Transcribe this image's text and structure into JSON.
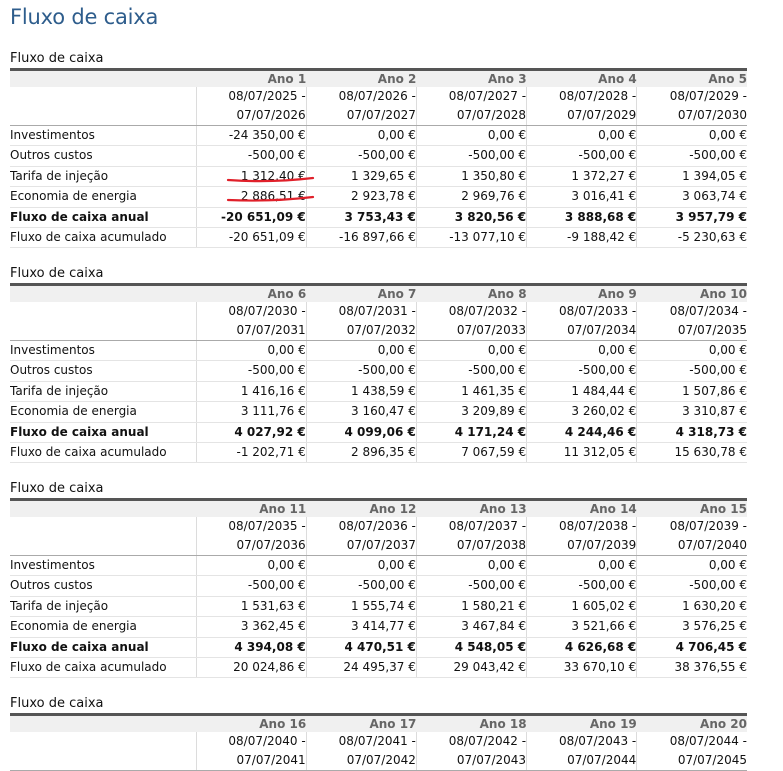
{
  "page_title": "Fluxo de caixa",
  "row_labels": [
    "Investimentos",
    "Outros custos",
    "Tarifa de injeção",
    "Economia de energia",
    "Fluxo de caixa anual",
    "Fluxo de caixa acumulado"
  ],
  "sections": [
    {
      "title": "Fluxo de caixa",
      "years": [
        "Ano 1",
        "Ano 2",
        "Ano 3",
        "Ano 4",
        "Ano 5"
      ],
      "date_from": [
        "08/07/2025 -",
        "08/07/2026 -",
        "08/07/2027 -",
        "08/07/2028 -",
        "08/07/2029 -"
      ],
      "date_to": [
        "07/07/2026",
        "07/07/2027",
        "07/07/2028",
        "07/07/2029",
        "07/07/2030"
      ],
      "rows": [
        [
          "-24 350,00 €",
          "0,00 €",
          "0,00 €",
          "0,00 €",
          "0,00 €"
        ],
        [
          "-500,00 €",
          "-500,00 €",
          "-500,00 €",
          "-500,00 €",
          "-500,00 €"
        ],
        [
          "1 312,40 €",
          "1 329,65 €",
          "1 350,80 €",
          "1 372,27 €",
          "1 394,05 €"
        ],
        [
          "2 886,51 €",
          "2 923,78 €",
          "2 969,76 €",
          "3 016,41 €",
          "3 063,74 €"
        ],
        [
          "-20 651,09 €",
          "3 753,43 €",
          "3 820,56 €",
          "3 888,68 €",
          "3 957,79 €"
        ],
        [
          "-20 651,09 €",
          "-16 897,66 €",
          "-13 077,10 €",
          "-9 188,42 €",
          "-5 230,63 €"
        ]
      ]
    },
    {
      "title": "Fluxo de caixa",
      "years": [
        "Ano 6",
        "Ano 7",
        "Ano 8",
        "Ano 9",
        "Ano 10"
      ],
      "date_from": [
        "08/07/2030 -",
        "08/07/2031 -",
        "08/07/2032 -",
        "08/07/2033 -",
        "08/07/2034 -"
      ],
      "date_to": [
        "07/07/2031",
        "07/07/2032",
        "07/07/2033",
        "07/07/2034",
        "07/07/2035"
      ],
      "rows": [
        [
          "0,00 €",
          "0,00 €",
          "0,00 €",
          "0,00 €",
          "0,00 €"
        ],
        [
          "-500,00 €",
          "-500,00 €",
          "-500,00 €",
          "-500,00 €",
          "-500,00 €"
        ],
        [
          "1 416,16 €",
          "1 438,59 €",
          "1 461,35 €",
          "1 484,44 €",
          "1 507,86 €"
        ],
        [
          "3 111,76 €",
          "3 160,47 €",
          "3 209,89 €",
          "3 260,02 €",
          "3 310,87 €"
        ],
        [
          "4 027,92 €",
          "4 099,06 €",
          "4 171,24 €",
          "4 244,46 €",
          "4 318,73 €"
        ],
        [
          "-1 202,71 €",
          "2 896,35 €",
          "7 067,59 €",
          "11 312,05 €",
          "15 630,78 €"
        ]
      ]
    },
    {
      "title": "Fluxo de caixa",
      "years": [
        "Ano 11",
        "Ano 12",
        "Ano 13",
        "Ano 14",
        "Ano 15"
      ],
      "date_from": [
        "08/07/2035 -",
        "08/07/2036 -",
        "08/07/2037 -",
        "08/07/2038 -",
        "08/07/2039 -"
      ],
      "date_to": [
        "07/07/2036",
        "07/07/2037",
        "07/07/2038",
        "07/07/2039",
        "07/07/2040"
      ],
      "rows": [
        [
          "0,00 €",
          "0,00 €",
          "0,00 €",
          "0,00 €",
          "0,00 €"
        ],
        [
          "-500,00 €",
          "-500,00 €",
          "-500,00 €",
          "-500,00 €",
          "-500,00 €"
        ],
        [
          "1 531,63 €",
          "1 555,74 €",
          "1 580,21 €",
          "1 605,02 €",
          "1 630,20 €"
        ],
        [
          "3 362,45 €",
          "3 414,77 €",
          "3 467,84 €",
          "3 521,66 €",
          "3 576,25 €"
        ],
        [
          "4 394,08 €",
          "4 470,51 €",
          "4 548,05 €",
          "4 626,68 €",
          "4 706,45 €"
        ],
        [
          "20 024,86 €",
          "24 495,37 €",
          "29 043,42 €",
          "33 670,10 €",
          "38 376,55 €"
        ]
      ]
    },
    {
      "title": "Fluxo de caixa",
      "years": [
        "Ano 16",
        "Ano 17",
        "Ano 18",
        "Ano 19",
        "Ano 20"
      ],
      "date_from": [
        "08/07/2040 -",
        "08/07/2041 -",
        "08/07/2042 -",
        "08/07/2043 -",
        "08/07/2044 -"
      ],
      "date_to": [
        "07/07/2041",
        "07/07/2042",
        "07/07/2043",
        "07/07/2044",
        "07/07/2045"
      ],
      "rows": []
    }
  ],
  "annotation": {
    "color": "#e0202a"
  }
}
